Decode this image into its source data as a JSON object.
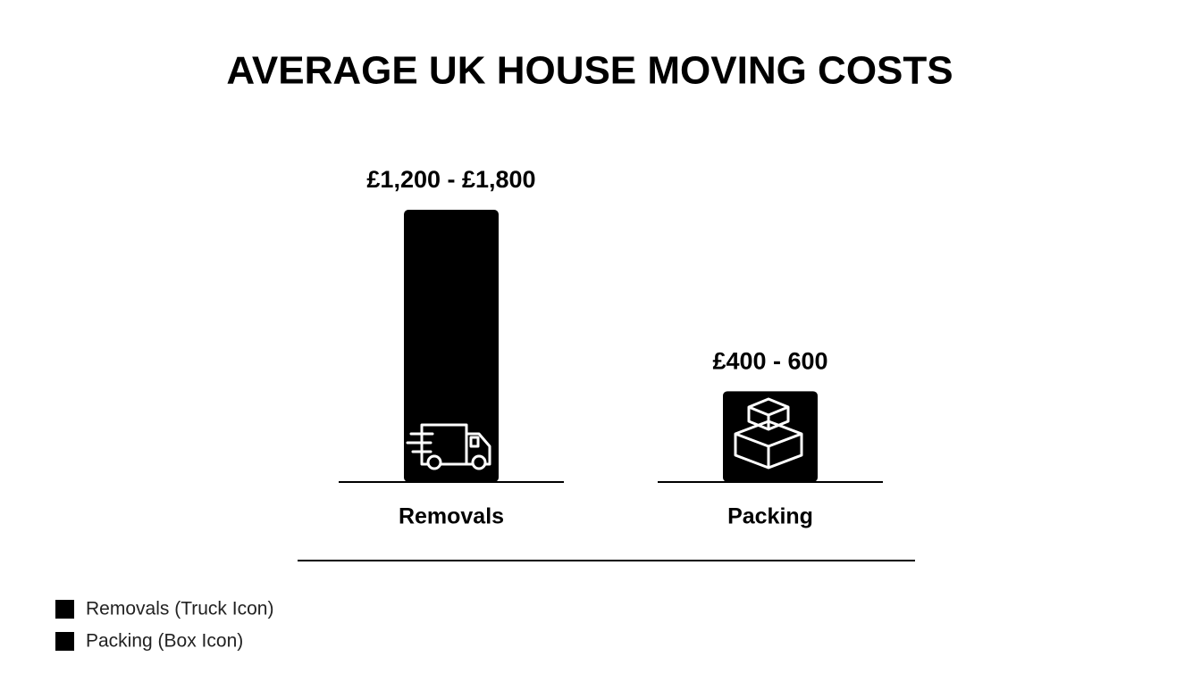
{
  "chart_data": {
    "type": "bar",
    "title": "AVERAGE UK HOUSE MOVING COSTS",
    "categories": [
      "Removals",
      "Packing"
    ],
    "values": [
      1800,
      600
    ],
    "value_labels": [
      "£1,200 - £1,800",
      "£400 - 600"
    ],
    "color": "#000000",
    "legend": [
      "Removals (Truck Icon)",
      "Packing (Box Icon)"
    ]
  }
}
